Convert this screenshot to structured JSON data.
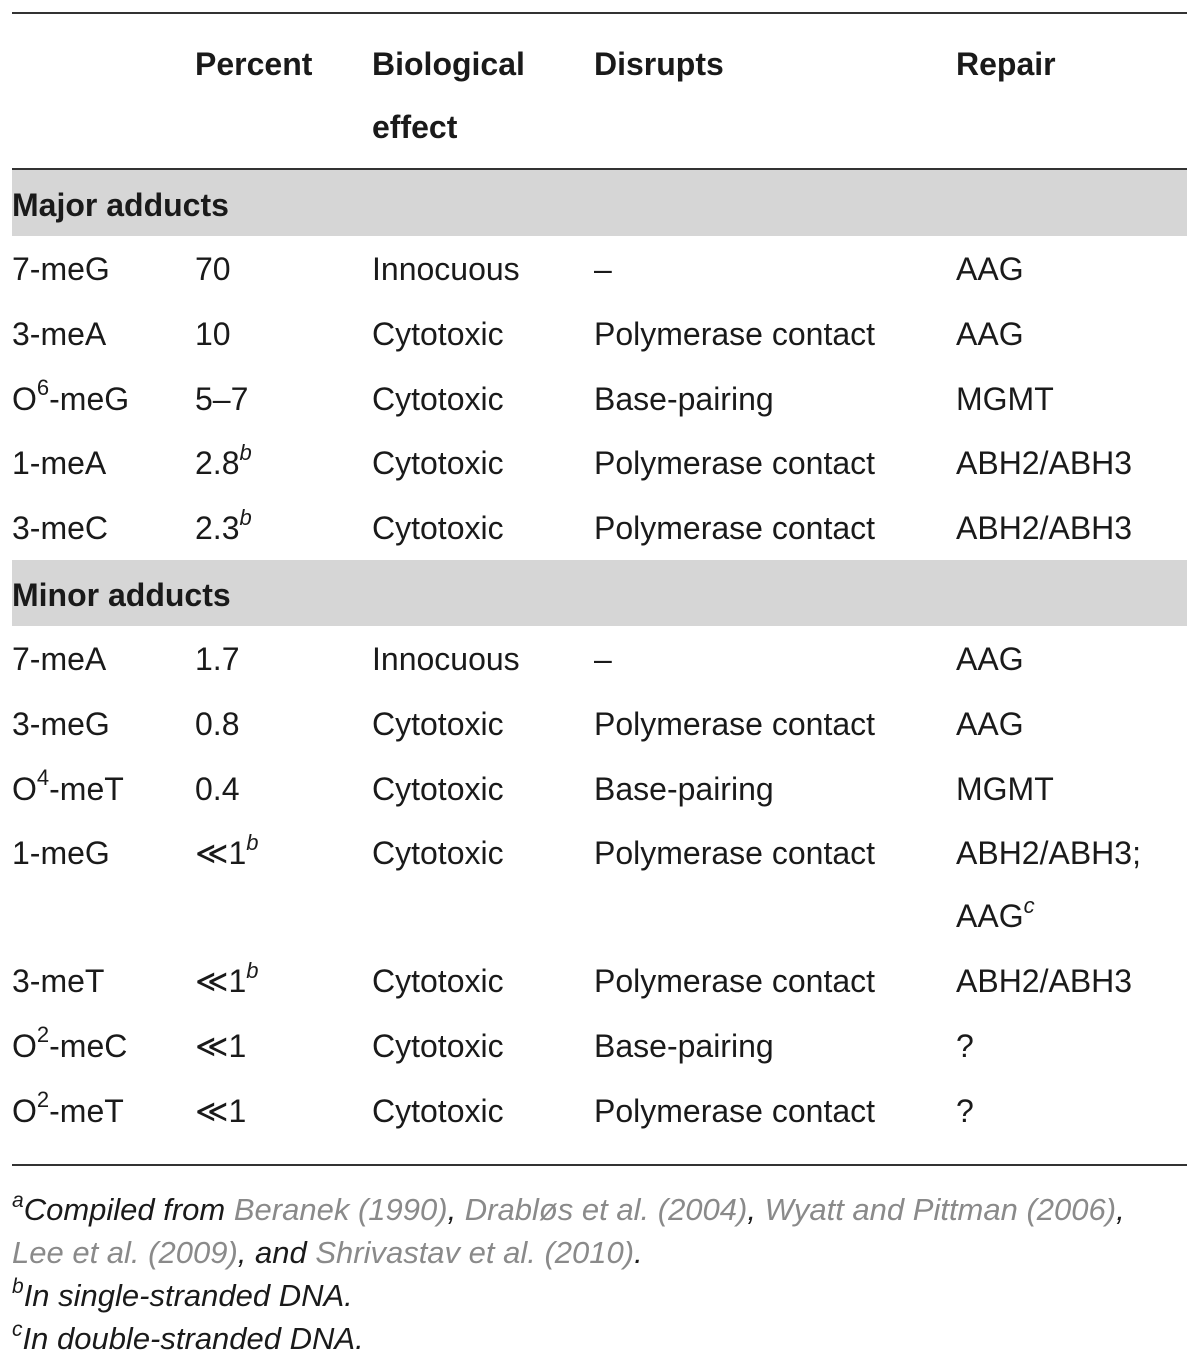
{
  "header": {
    "col0": "",
    "col1": "Percent",
    "col2_line1": "Biological",
    "col2_line2": "effect",
    "col3": "Disrupts",
    "col4": "Repair"
  },
  "sections": [
    {
      "title": "Major adducts",
      "rows": [
        {
          "adduct": "7-meG",
          "adduct_sup": "",
          "adduct_suffix": "",
          "percent": "70",
          "percent_sup": "",
          "effect": "Innocuous",
          "disrupts": "–",
          "repair": "AAG",
          "repair2": "",
          "repair2_sup": ""
        },
        {
          "adduct": "3-meA",
          "adduct_sup": "",
          "adduct_suffix": "",
          "percent": "10",
          "percent_sup": "",
          "effect": "Cytotoxic",
          "disrupts": "Polymerase contact",
          "repair": "AAG",
          "repair2": "",
          "repair2_sup": ""
        },
        {
          "adduct": "O",
          "adduct_sup": "6",
          "adduct_suffix": "-meG",
          "percent": "5–7",
          "percent_sup": "",
          "effect": "Cytotoxic",
          "disrupts": "Base-pairing",
          "repair": "MGMT",
          "repair2": "",
          "repair2_sup": ""
        },
        {
          "adduct": "1-meA",
          "adduct_sup": "",
          "adduct_suffix": "",
          "percent": "2.8",
          "percent_sup": "b",
          "effect": "Cytotoxic",
          "disrupts": "Polymerase contact",
          "repair": "ABH2/ABH3",
          "repair2": "",
          "repair2_sup": ""
        },
        {
          "adduct": "3-meC",
          "adduct_sup": "",
          "adduct_suffix": "",
          "percent": "2.3",
          "percent_sup": "b",
          "effect": "Cytotoxic",
          "disrupts": "Polymerase contact",
          "repair": "ABH2/ABH3",
          "repair2": "",
          "repair2_sup": ""
        }
      ]
    },
    {
      "title": "Minor adducts",
      "rows": [
        {
          "adduct": "7-meA",
          "adduct_sup": "",
          "adduct_suffix": "",
          "percent": "1.7",
          "percent_sup": "",
          "effect": "Innocuous",
          "disrupts": "–",
          "repair": "AAG",
          "repair2": "",
          "repair2_sup": ""
        },
        {
          "adduct": "3-meG",
          "adduct_sup": "",
          "adduct_suffix": "",
          "percent": "0.8",
          "percent_sup": "",
          "effect": "Cytotoxic",
          "disrupts": "Polymerase contact",
          "repair": "AAG",
          "repair2": "",
          "repair2_sup": ""
        },
        {
          "adduct": "O",
          "adduct_sup": "4",
          "adduct_suffix": "-meT",
          "percent": "0.4",
          "percent_sup": "",
          "effect": "Cytotoxic",
          "disrupts": "Base-pairing",
          "repair": "MGMT",
          "repair2": "",
          "repair2_sup": ""
        },
        {
          "adduct": "1-meG",
          "adduct_sup": "",
          "adduct_suffix": "",
          "percent": "≪1",
          "percent_sup": "b",
          "effect": "Cytotoxic",
          "disrupts": "Polymerase contact",
          "repair": "ABH2/ABH3;",
          "repair2": "AAG",
          "repair2_sup": "c"
        },
        {
          "adduct": "3-meT",
          "adduct_sup": "",
          "adduct_suffix": "",
          "percent": "≪1",
          "percent_sup": "b",
          "effect": "Cytotoxic",
          "disrupts": "Polymerase contact",
          "repair": "ABH2/ABH3",
          "repair2": "",
          "repair2_sup": ""
        },
        {
          "adduct": "O",
          "adduct_sup": "2",
          "adduct_suffix": "-meC",
          "percent": "≪1",
          "percent_sup": "",
          "effect": "Cytotoxic",
          "disrupts": "Base-pairing",
          "repair": "?",
          "repair2": "",
          "repair2_sup": ""
        },
        {
          "adduct": "O",
          "adduct_sup": "2",
          "adduct_suffix": "-meT",
          "percent": "≪1",
          "percent_sup": "",
          "effect": "Cytotoxic",
          "disrupts": "Polymerase contact",
          "repair": "?",
          "repair2": "",
          "repair2_sup": ""
        }
      ]
    }
  ],
  "footnotes": {
    "a_mark": "a",
    "a_lead": "Compiled from ",
    "a_ref1": "Beranek (1990)",
    "a_sep1": ", ",
    "a_ref2": "Drabløs et al. (2004)",
    "a_sep2": ", ",
    "a_ref3": "Wyatt and Pittman (2006)",
    "a_sep3": ",",
    "a_ref4": "Lee et al. (2009)",
    "a_sep4": ", and ",
    "a_ref5": "Shrivastav et al. (2010)",
    "a_end": ".",
    "b_mark": "b",
    "b_text": "In single-stranded DNA.",
    "c_mark": "c",
    "c_text": "In double-stranded DNA."
  }
}
